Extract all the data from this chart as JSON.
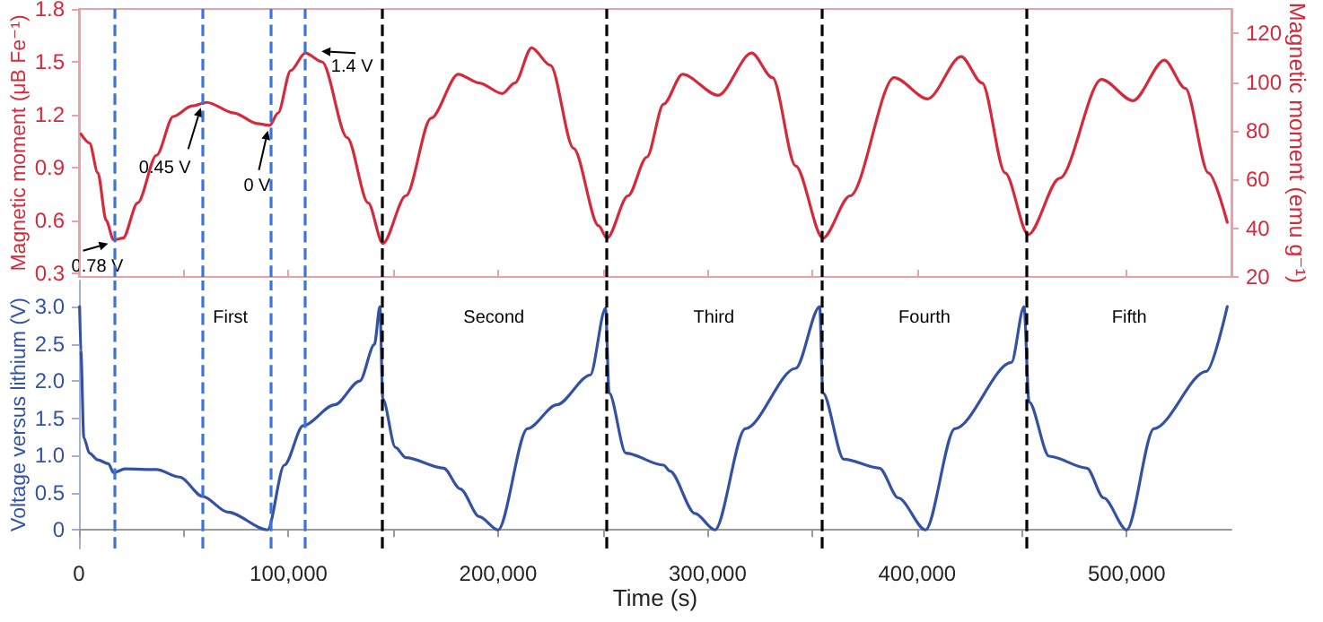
{
  "chart_data": [
    {
      "type": "line",
      "ylabel": "Magnetic moment (μB Fe⁻¹)",
      "y2label": "Magnetic moment (emu g⁻¹)",
      "tick_labels": "y",
      "xlim": [
        0,
        550000
      ],
      "xticks": [
        {
          "value": 50000,
          "label": null
        },
        {
          "value": 100000,
          "label": null
        },
        {
          "value": 150000,
          "label": null
        },
        {
          "value": 200000,
          "label": null
        },
        {
          "value": 250000,
          "label": null
        },
        {
          "value": 300000,
          "label": null
        },
        {
          "value": 350000,
          "label": null
        },
        {
          "value": 400000,
          "label": null
        },
        {
          "value": 500000,
          "label": null
        }
      ],
      "ylim": [
        0.28,
        1.8
      ],
      "yticks": [
        0.3,
        0.6,
        0.9,
        1.2,
        1.5,
        1.8
      ],
      "y2lim": [
        20,
        130
      ],
      "y2ticks": [
        20,
        40,
        60,
        80,
        100,
        120
      ],
      "series": [
        {
          "color": "#d42a3c",
          "x": [
            1000,
            5000,
            9000,
            13000,
            16500,
            21000,
            28000,
            37000,
            45000,
            54000,
            61000,
            74000,
            85000,
            91000,
            95000,
            101000,
            108000,
            116000,
            128000,
            138000,
            145000,
            156000,
            168000,
            181000,
            191000,
            202000,
            208000,
            216000,
            225000,
            236000,
            248000,
            252000,
            262000,
            271000,
            279000,
            288000,
            305000,
            321000,
            331000,
            342000,
            355000,
            368000,
            389000,
            405000,
            421000,
            431000,
            442000,
            453000,
            468000,
            488000,
            503000,
            518000,
            528000,
            539000,
            548000
          ],
          "values": [
            1.09,
            1.04,
            0.87,
            0.6,
            0.49,
            0.5,
            0.7,
            0.97,
            1.19,
            1.25,
            1.27,
            1.21,
            1.15,
            1.14,
            1.21,
            1.45,
            1.55,
            1.5,
            1.07,
            0.7,
            0.47,
            0.74,
            1.18,
            1.43,
            1.38,
            1.32,
            1.38,
            1.58,
            1.48,
            1.01,
            0.57,
            0.5,
            0.74,
            0.96,
            1.26,
            1.43,
            1.31,
            1.55,
            1.41,
            0.91,
            0.5,
            0.74,
            1.41,
            1.29,
            1.53,
            1.38,
            0.87,
            0.52,
            0.84,
            1.4,
            1.28,
            1.51,
            1.35,
            0.87,
            0.59
          ]
        }
      ],
      "ref_lines": [
        {
          "axis": "x",
          "value": 16500,
          "color": "#3d74d9",
          "line_style": "dashed"
        },
        {
          "axis": "x",
          "value": 59000,
          "color": "#3d74d9",
          "line_style": "dashed"
        },
        {
          "axis": "x",
          "value": 91500,
          "color": "#3d74d9",
          "line_style": "dashed"
        },
        {
          "axis": "x",
          "value": 108000,
          "color": "#3d74d9",
          "line_style": "dashed"
        },
        {
          "axis": "x",
          "value": 144500,
          "color": "#000000",
          "line_style": "dashed"
        },
        {
          "axis": "x",
          "value": 251500,
          "color": "#000000",
          "line_style": "dashed"
        },
        {
          "axis": "x",
          "value": 354500,
          "color": "#000000",
          "line_style": "dashed"
        },
        {
          "axis": "x",
          "value": 452500,
          "color": "#000000",
          "line_style": "dashed"
        }
      ],
      "annotations": [
        {
          "text": "0.78 V",
          "x": 16500,
          "y": 0.49
        },
        {
          "text": "0.45 V",
          "x": 59000,
          "y": 1.27
        },
        {
          "text": "0 V",
          "x": 91000,
          "y": 1.14
        },
        {
          "text": "1.4 V",
          "x": 108000,
          "y": 1.55
        }
      ]
    },
    {
      "type": "line",
      "xlabel": "Time (s)",
      "ylabel": "Voltage versus lithium (V)",
      "xlim": [
        0,
        550000
      ],
      "xticks": [
        0,
        {
          "value": 50000,
          "label": null
        },
        {
          "value": 100000,
          "label": "100,000"
        },
        {
          "value": 150000,
          "label": null
        },
        {
          "value": 200000,
          "label": "200,000"
        },
        {
          "value": 250000,
          "label": null
        },
        {
          "value": 300000,
          "label": "300,000"
        },
        {
          "value": 350000,
          "label": null
        },
        {
          "value": 400000,
          "label": "400,000"
        },
        {
          "value": 450000,
          "label": null
        },
        {
          "value": 500000,
          "label": "500,000"
        }
      ],
      "ylim": [
        -0.25,
        3.35
      ],
      "yticks": [
        0,
        {
          "value": 0.5,
          "label": "0.5"
        },
        {
          "value": 1,
          "label": "1.0"
        },
        {
          "value": 1.5,
          "label": "1.5"
        },
        {
          "value": 2,
          "label": "2.0"
        },
        {
          "value": 2.5,
          "label": "2.5"
        },
        {
          "value": 3,
          "label": "3.0"
        }
      ],
      "series": [
        {
          "color": "#3452a4",
          "x": [
            300,
            900,
            2300,
            5000,
            9000,
            14000,
            16500,
            22000,
            37000,
            48000,
            59000,
            71000,
            90000,
            98000,
            107000,
            122000,
            134000,
            141000,
            143600,
            145000,
            151000,
            156000,
            174000,
            182000,
            191000,
            200000,
            214000,
            228000,
            244000,
            251300,
            253000,
            261000,
            279000,
            282000,
            294000,
            303500,
            318000,
            342000,
            353500,
            355000,
            365000,
            382000,
            391000,
            404000,
            418000,
            445000,
            451000,
            453400,
            463000,
            481000,
            489000,
            500000,
            513000,
            538000,
            548000
          ],
          "values": [
            3.0,
            2.41,
            1.24,
            1.03,
            0.94,
            0.89,
            0.77,
            0.82,
            0.81,
            0.71,
            0.45,
            0.24,
            0.0,
            0.87,
            1.4,
            1.68,
            2.0,
            2.49,
            3.0,
            1.76,
            1.11,
            0.97,
            0.83,
            0.55,
            0.18,
            0.0,
            1.36,
            1.68,
            2.08,
            2.98,
            1.84,
            1.03,
            0.87,
            0.79,
            0.22,
            0.0,
            1.36,
            2.17,
            3.0,
            1.84,
            0.95,
            0.83,
            0.43,
            0.0,
            1.36,
            2.25,
            3.0,
            1.72,
            0.99,
            0.83,
            0.43,
            0.0,
            1.36,
            2.13,
            3.0
          ]
        }
      ],
      "ref_lines": [
        {
          "axis": "x",
          "value": 16500,
          "color": "#3d74d9",
          "line_style": "dashed"
        },
        {
          "axis": "x",
          "value": 59000,
          "color": "#3d74d9",
          "line_style": "dashed"
        },
        {
          "axis": "x",
          "value": 91500,
          "color": "#3d74d9",
          "line_style": "dashed"
        },
        {
          "axis": "x",
          "value": 108000,
          "color": "#3d74d9",
          "line_style": "dashed"
        },
        {
          "axis": "x",
          "value": 144500,
          "color": "#000000",
          "line_style": "dashed"
        },
        {
          "axis": "x",
          "value": 251500,
          "color": "#000000",
          "line_style": "dashed"
        },
        {
          "axis": "x",
          "value": 354500,
          "color": "#000000",
          "line_style": "dashed"
        },
        {
          "axis": "x",
          "value": 452500,
          "color": "#000000",
          "line_style": "dashed"
        }
      ],
      "annotations": [
        "First",
        "Second",
        "Third",
        "Fourth",
        "Fifth"
      ]
    }
  ]
}
